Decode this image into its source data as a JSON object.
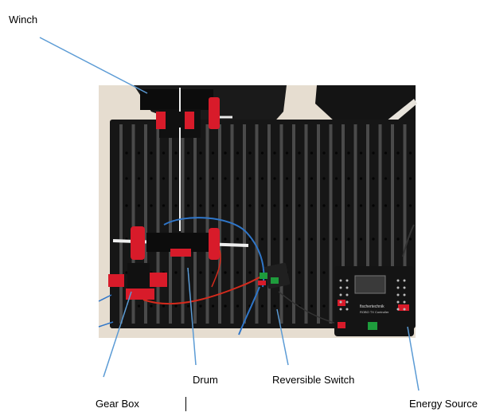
{
  "labels": {
    "winch": "Winch",
    "drum": "Drum",
    "reversible_switch": "Reversible Switch",
    "gear_box": "Gear Box",
    "energy_source": "Energy Source"
  },
  "controller": {
    "brand_text": "fischertechnik",
    "model_text": "ROBO TX Controller"
  },
  "colors": {
    "leader": "#5b9bd5",
    "board": "#161616",
    "table": "#e6ddd0",
    "gear_red": "#d81b2a",
    "wire_red": "#d32a1c",
    "wire_blue": "#2f76c9",
    "switch_green": "#1e9c3c"
  },
  "icons": [
    "winch-icon",
    "drum-icon",
    "gear-box-icon",
    "reversible-switch-icon",
    "controller-icon"
  ]
}
